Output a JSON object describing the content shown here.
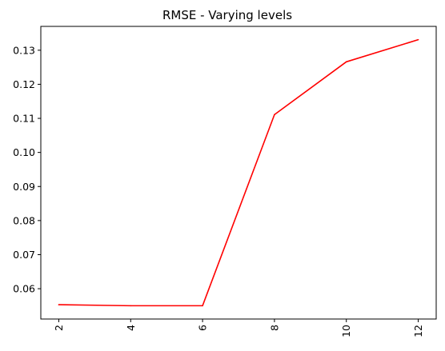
{
  "chart_data": {
    "type": "line",
    "title": "RMSE - Varying levels",
    "xlabel": "",
    "ylabel": "",
    "x": [
      2,
      4,
      6,
      8,
      10,
      12
    ],
    "series": [
      {
        "values": [
          0.0553,
          0.055,
          0.055,
          0.1111,
          0.1266,
          0.1331
        ],
        "color": "#ff0000"
      }
    ],
    "xticks": [
      2,
      4,
      6,
      8,
      10,
      12
    ],
    "xtick_labels": [
      "2",
      "4",
      "6",
      "8",
      "10",
      "12"
    ],
    "xtick_rotation": "vertical",
    "yticks": [
      0.06,
      0.07,
      0.08,
      0.09,
      0.1,
      0.11,
      0.12,
      0.13
    ],
    "ytick_labels": [
      "0.06",
      "0.07",
      "0.08",
      "0.09",
      "0.10",
      "0.11",
      "0.12",
      "0.13"
    ],
    "xlim": [
      1.5,
      12.5
    ],
    "ylim": [
      0.0511,
      0.137
    ],
    "grid": false,
    "legend": "none"
  }
}
